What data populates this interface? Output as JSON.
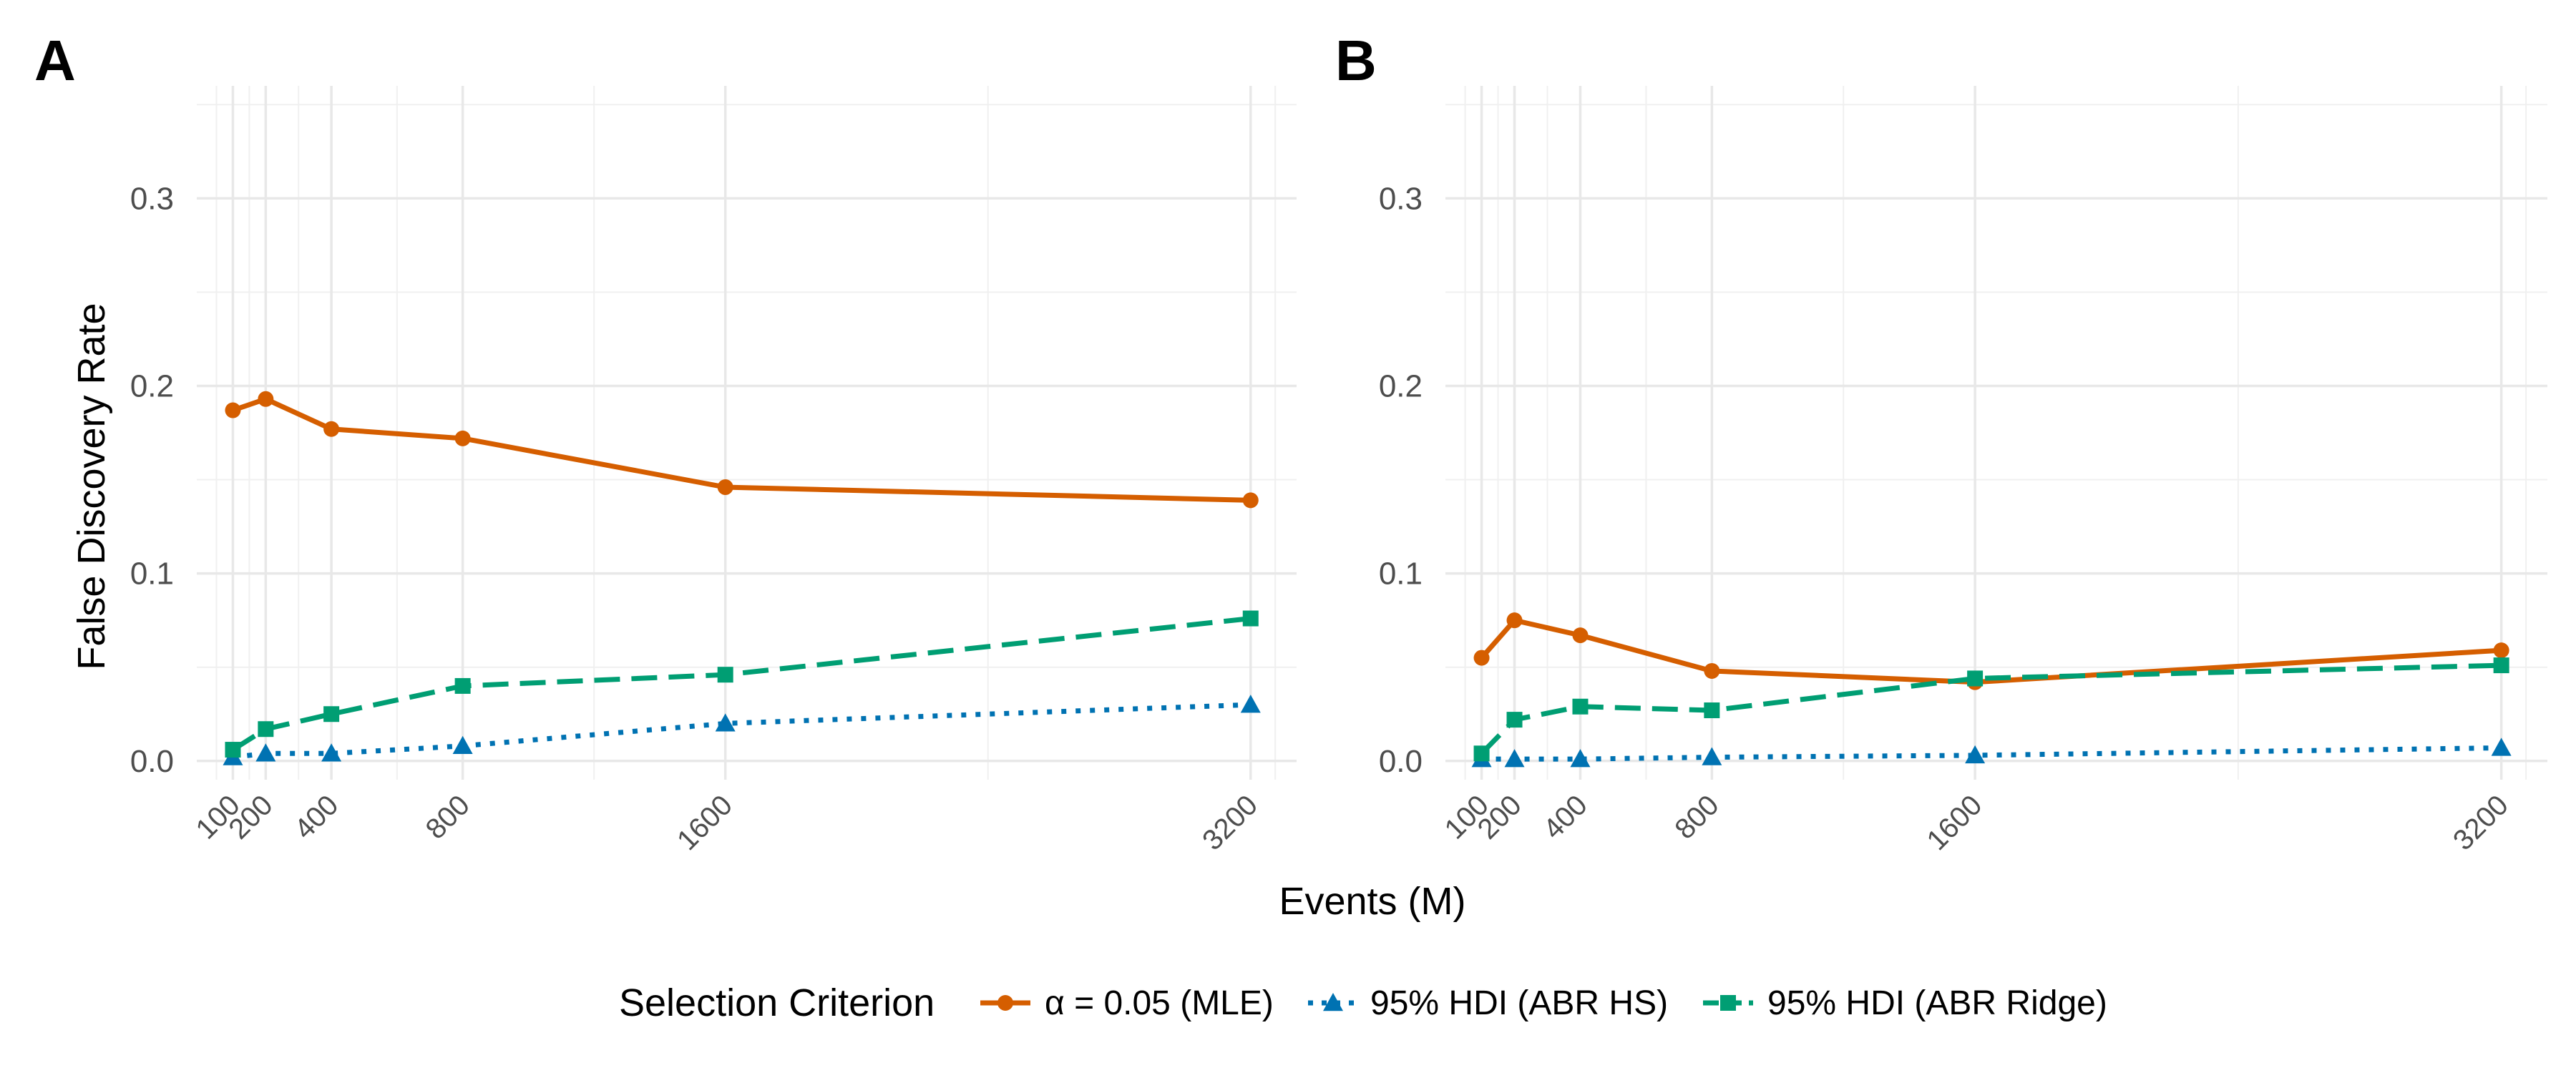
{
  "chart_data": [
    {
      "panel": "A",
      "type": "line",
      "x": [
        100,
        200,
        400,
        800,
        1600,
        3200
      ],
      "x_tick_labels": [
        "100",
        "200",
        "400",
        "800",
        "1600",
        "3200"
      ],
      "y_ticks": [
        0.0,
        0.1,
        0.2,
        0.3
      ],
      "y_tick_labels": [
        "0.0",
        "0.1",
        "0.2",
        "0.3"
      ],
      "ylim": [
        -0.01,
        0.36
      ],
      "xlim": [
        -10,
        3340
      ],
      "xlabel": "Events (M)",
      "ylabel": "False Discovery Rate",
      "grid": true,
      "series": [
        {
          "name": "α = 0.05 (MLE)",
          "color": "#D55E00",
          "linestyle": "solid",
          "marker": "circle",
          "values": [
            0.187,
            0.193,
            0.177,
            0.172,
            0.146,
            0.139
          ]
        },
        {
          "name": "95% HDI (ABR HS)",
          "color": "#0072B2",
          "linestyle": "dotted",
          "marker": "triangle",
          "values": [
            0.002,
            0.004,
            0.004,
            0.008,
            0.02,
            0.03
          ]
        },
        {
          "name": "95% HDI (ABR Ridge)",
          "color": "#009E73",
          "linestyle": "dashed",
          "marker": "square",
          "values": [
            0.006,
            0.017,
            0.025,
            0.04,
            0.046,
            0.076
          ]
        }
      ]
    },
    {
      "panel": "B",
      "type": "line",
      "x": [
        100,
        200,
        400,
        800,
        1600,
        3200
      ],
      "x_tick_labels": [
        "100",
        "200",
        "400",
        "800",
        "1600",
        "3200"
      ],
      "y_ticks": [
        0.0,
        0.1,
        0.2,
        0.3
      ],
      "y_tick_labels": [
        "0.0",
        "0.1",
        "0.2",
        "0.3"
      ],
      "ylim": [
        -0.01,
        0.36
      ],
      "xlim": [
        -10,
        3340
      ],
      "xlabel": "Events (M)",
      "ylabel": "",
      "grid": true,
      "series": [
        {
          "name": "α = 0.05 (MLE)",
          "color": "#D55E00",
          "linestyle": "solid",
          "marker": "circle",
          "values": [
            0.055,
            0.075,
            0.067,
            0.048,
            0.042,
            0.059
          ]
        },
        {
          "name": "95% HDI (ABR HS)",
          "color": "#0072B2",
          "linestyle": "dotted",
          "marker": "triangle",
          "values": [
            0.001,
            0.001,
            0.001,
            0.002,
            0.003,
            0.007
          ]
        },
        {
          "name": "95% HDI (ABR Ridge)",
          "color": "#009E73",
          "linestyle": "dashed",
          "marker": "square",
          "values": [
            0.004,
            0.022,
            0.029,
            0.027,
            0.044,
            0.051
          ]
        }
      ]
    }
  ],
  "legend": {
    "title": "Selection Criterion",
    "position": "bottom",
    "items": [
      "α = 0.05 (MLE)",
      "95% HDI (ABR HS)",
      "95% HDI (ABR Ridge)"
    ]
  }
}
